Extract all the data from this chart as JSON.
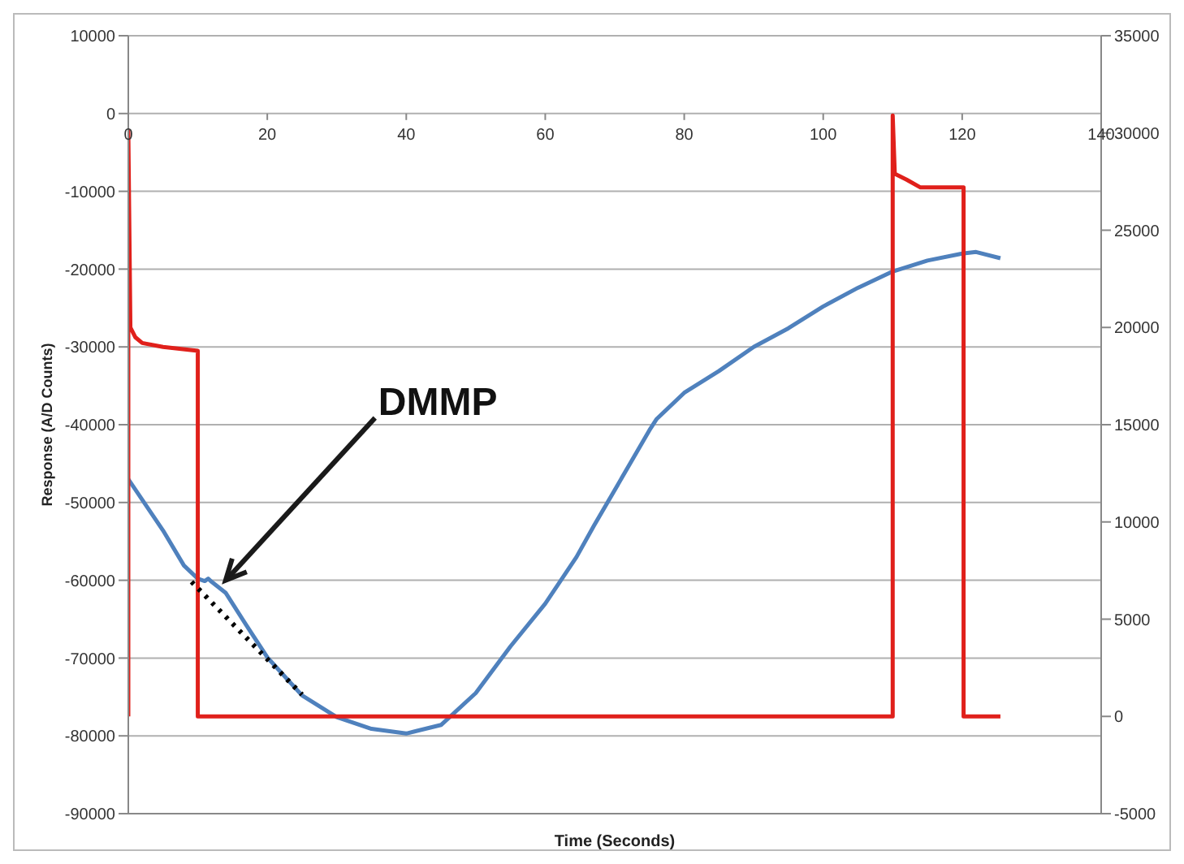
{
  "chart_data": {
    "type": "line",
    "xlabel": "Time (Seconds)",
    "ylabel": "Response  (A/D Counts)",
    "xlim": [
      0,
      140
    ],
    "xticks": [
      0,
      20,
      40,
      60,
      80,
      100,
      120,
      140
    ],
    "ylim": [
      -90000,
      10000
    ],
    "yticks": [
      -90000,
      -80000,
      -70000,
      -60000,
      -50000,
      -40000,
      -30000,
      -20000,
      -10000,
      0,
      10000
    ],
    "y2lim": [
      -5000,
      35000
    ],
    "y2ticks": [
      -5000,
      0,
      5000,
      10000,
      15000,
      20000,
      25000,
      30000,
      35000
    ],
    "grid": "y",
    "marker": "none",
    "line_style": "solid",
    "series": [
      {
        "color": "#4f81bd",
        "x": [
          0,
          5,
          8,
          10,
          11,
          11.5,
          12,
          14,
          17,
          20,
          25,
          30,
          35,
          40,
          45,
          50,
          55,
          60,
          64.5,
          67,
          70,
          75,
          76,
          80,
          85,
          90,
          95,
          100,
          105,
          110,
          115,
          120,
          122,
          125.5
        ],
        "values": [
          -47000,
          -53600,
          -58100,
          -59800,
          -60100,
          -59800,
          -60200,
          -61600,
          -65800,
          -69900,
          -74800,
          -77600,
          -79100,
          -79700,
          -78600,
          -74500,
          -68500,
          -63000,
          -57000,
          -53000,
          -48400,
          -40700,
          -39300,
          -35900,
          -33100,
          -30000,
          -27600,
          -24800,
          -22400,
          -20300,
          -18900,
          -18000,
          -17800,
          -18600
        ]
      },
      {
        "color": "#e0201b",
        "axis": "y2",
        "x": [
          0,
          0,
          0.3,
          1,
          2,
          5,
          10,
          10,
          110,
          110,
          110.3,
          112,
          114,
          120.2,
          120.2,
          125.5
        ],
        "values": [
          0,
          30100,
          20000,
          19500,
          19200,
          19000,
          18800,
          0,
          0,
          30900,
          27900,
          27600,
          27200,
          27200,
          0,
          0
        ]
      },
      {
        "color": "#000000",
        "line_style": "dotted",
        "x": [
          9.1,
          25
        ],
        "values": [
          -60200,
          -74700
        ]
      }
    ],
    "annotations": [
      {
        "text": "DMMP",
        "x": 14,
        "y": -60000
      }
    ]
  }
}
